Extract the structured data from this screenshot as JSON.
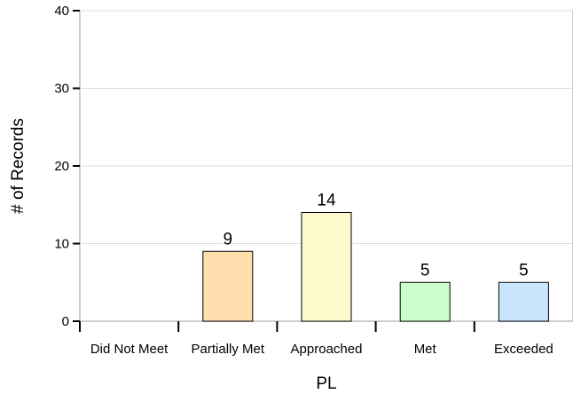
{
  "chart_data": {
    "type": "bar",
    "categories": [
      "Did Not Meet",
      "Partially Met",
      "Approached",
      "Met",
      "Exceeded"
    ],
    "values": [
      0,
      9,
      14,
      5,
      5
    ],
    "data_labels": [
      "",
      "9",
      "14",
      "5",
      "5"
    ],
    "colors": [
      "#FFFFFF",
      "#FFDEAD",
      "#FFFACD",
      "#CCFFCC",
      "#CCE5FF"
    ],
    "xlabel": "PL",
    "ylabel": "# of Records",
    "ylim": [
      0,
      40
    ],
    "yticks": [
      0,
      10,
      20,
      30,
      40
    ],
    "ytick_labels": [
      "0",
      "10",
      "20",
      "30",
      "40"
    ],
    "grid": true
  }
}
